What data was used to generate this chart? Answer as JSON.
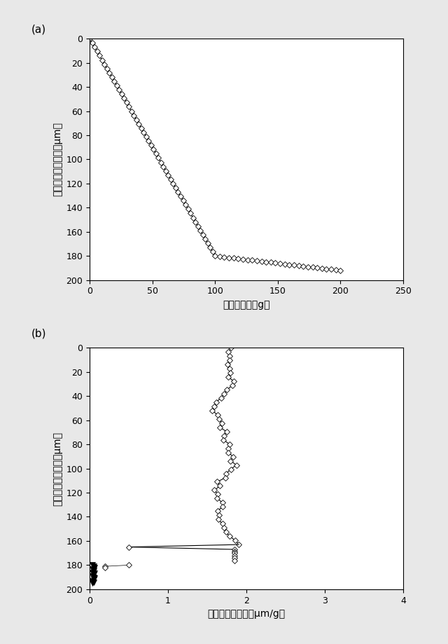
{
  "panel_a": {
    "label": "(a)",
    "xlabel": "投射粒子量［g］",
    "ylabel": "エロージョン深さ［μm］",
    "xlim": [
      0,
      250
    ],
    "ylim": [
      200,
      0
    ],
    "xticks": [
      0,
      50,
      100,
      150,
      200,
      250
    ],
    "yticks": [
      0,
      20,
      40,
      60,
      80,
      100,
      120,
      140,
      160,
      180,
      200
    ]
  },
  "panel_b": {
    "label": "(b)",
    "xlabel": "エロージョン率［μm/g］",
    "ylabel": "エロージョン深さ［μm］",
    "xlim": [
      0,
      4
    ],
    "ylim": [
      200,
      0
    ],
    "xticks": [
      0,
      1,
      2,
      3,
      4
    ],
    "yticks": [
      0,
      20,
      40,
      60,
      80,
      100,
      120,
      140,
      160,
      180,
      200
    ]
  },
  "background_color": "#e8e8e8",
  "plot_bg": "#ffffff",
  "line_color": "#000000",
  "marker": "D",
  "marker_size": 4,
  "marker_facecolor": "white",
  "marker_edgecolor": "black"
}
